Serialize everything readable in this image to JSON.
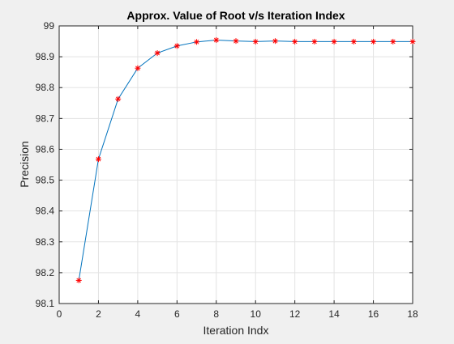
{
  "chart_data": {
    "type": "line",
    "title": "Approx. Value of Root v/s Iteration Index",
    "xlabel": "Iteration Indx",
    "ylabel": "Precision",
    "xlim": [
      0,
      18
    ],
    "ylim": [
      98.1,
      99
    ],
    "xticks": [
      0,
      2,
      4,
      6,
      8,
      10,
      12,
      14,
      16,
      18
    ],
    "yticks": [
      98.1,
      98.2,
      98.3,
      98.4,
      98.5,
      98.6,
      98.7,
      98.8,
      98.9,
      99
    ],
    "grid": true,
    "series": [
      {
        "x": [
          1,
          2,
          3,
          4,
          5,
          6,
          7,
          8,
          9,
          10,
          11,
          12,
          13,
          14,
          15,
          16,
          17,
          18
        ],
        "y": [
          98.175,
          98.568,
          98.763,
          98.863,
          98.912,
          98.935,
          98.948,
          98.954,
          98.951,
          98.949,
          98.951,
          98.949,
          98.949,
          98.949,
          98.949,
          98.949,
          98.949,
          98.949
        ],
        "line_color": "#0072bd",
        "marker": "*",
        "marker_color": "#ff0000"
      }
    ]
  }
}
